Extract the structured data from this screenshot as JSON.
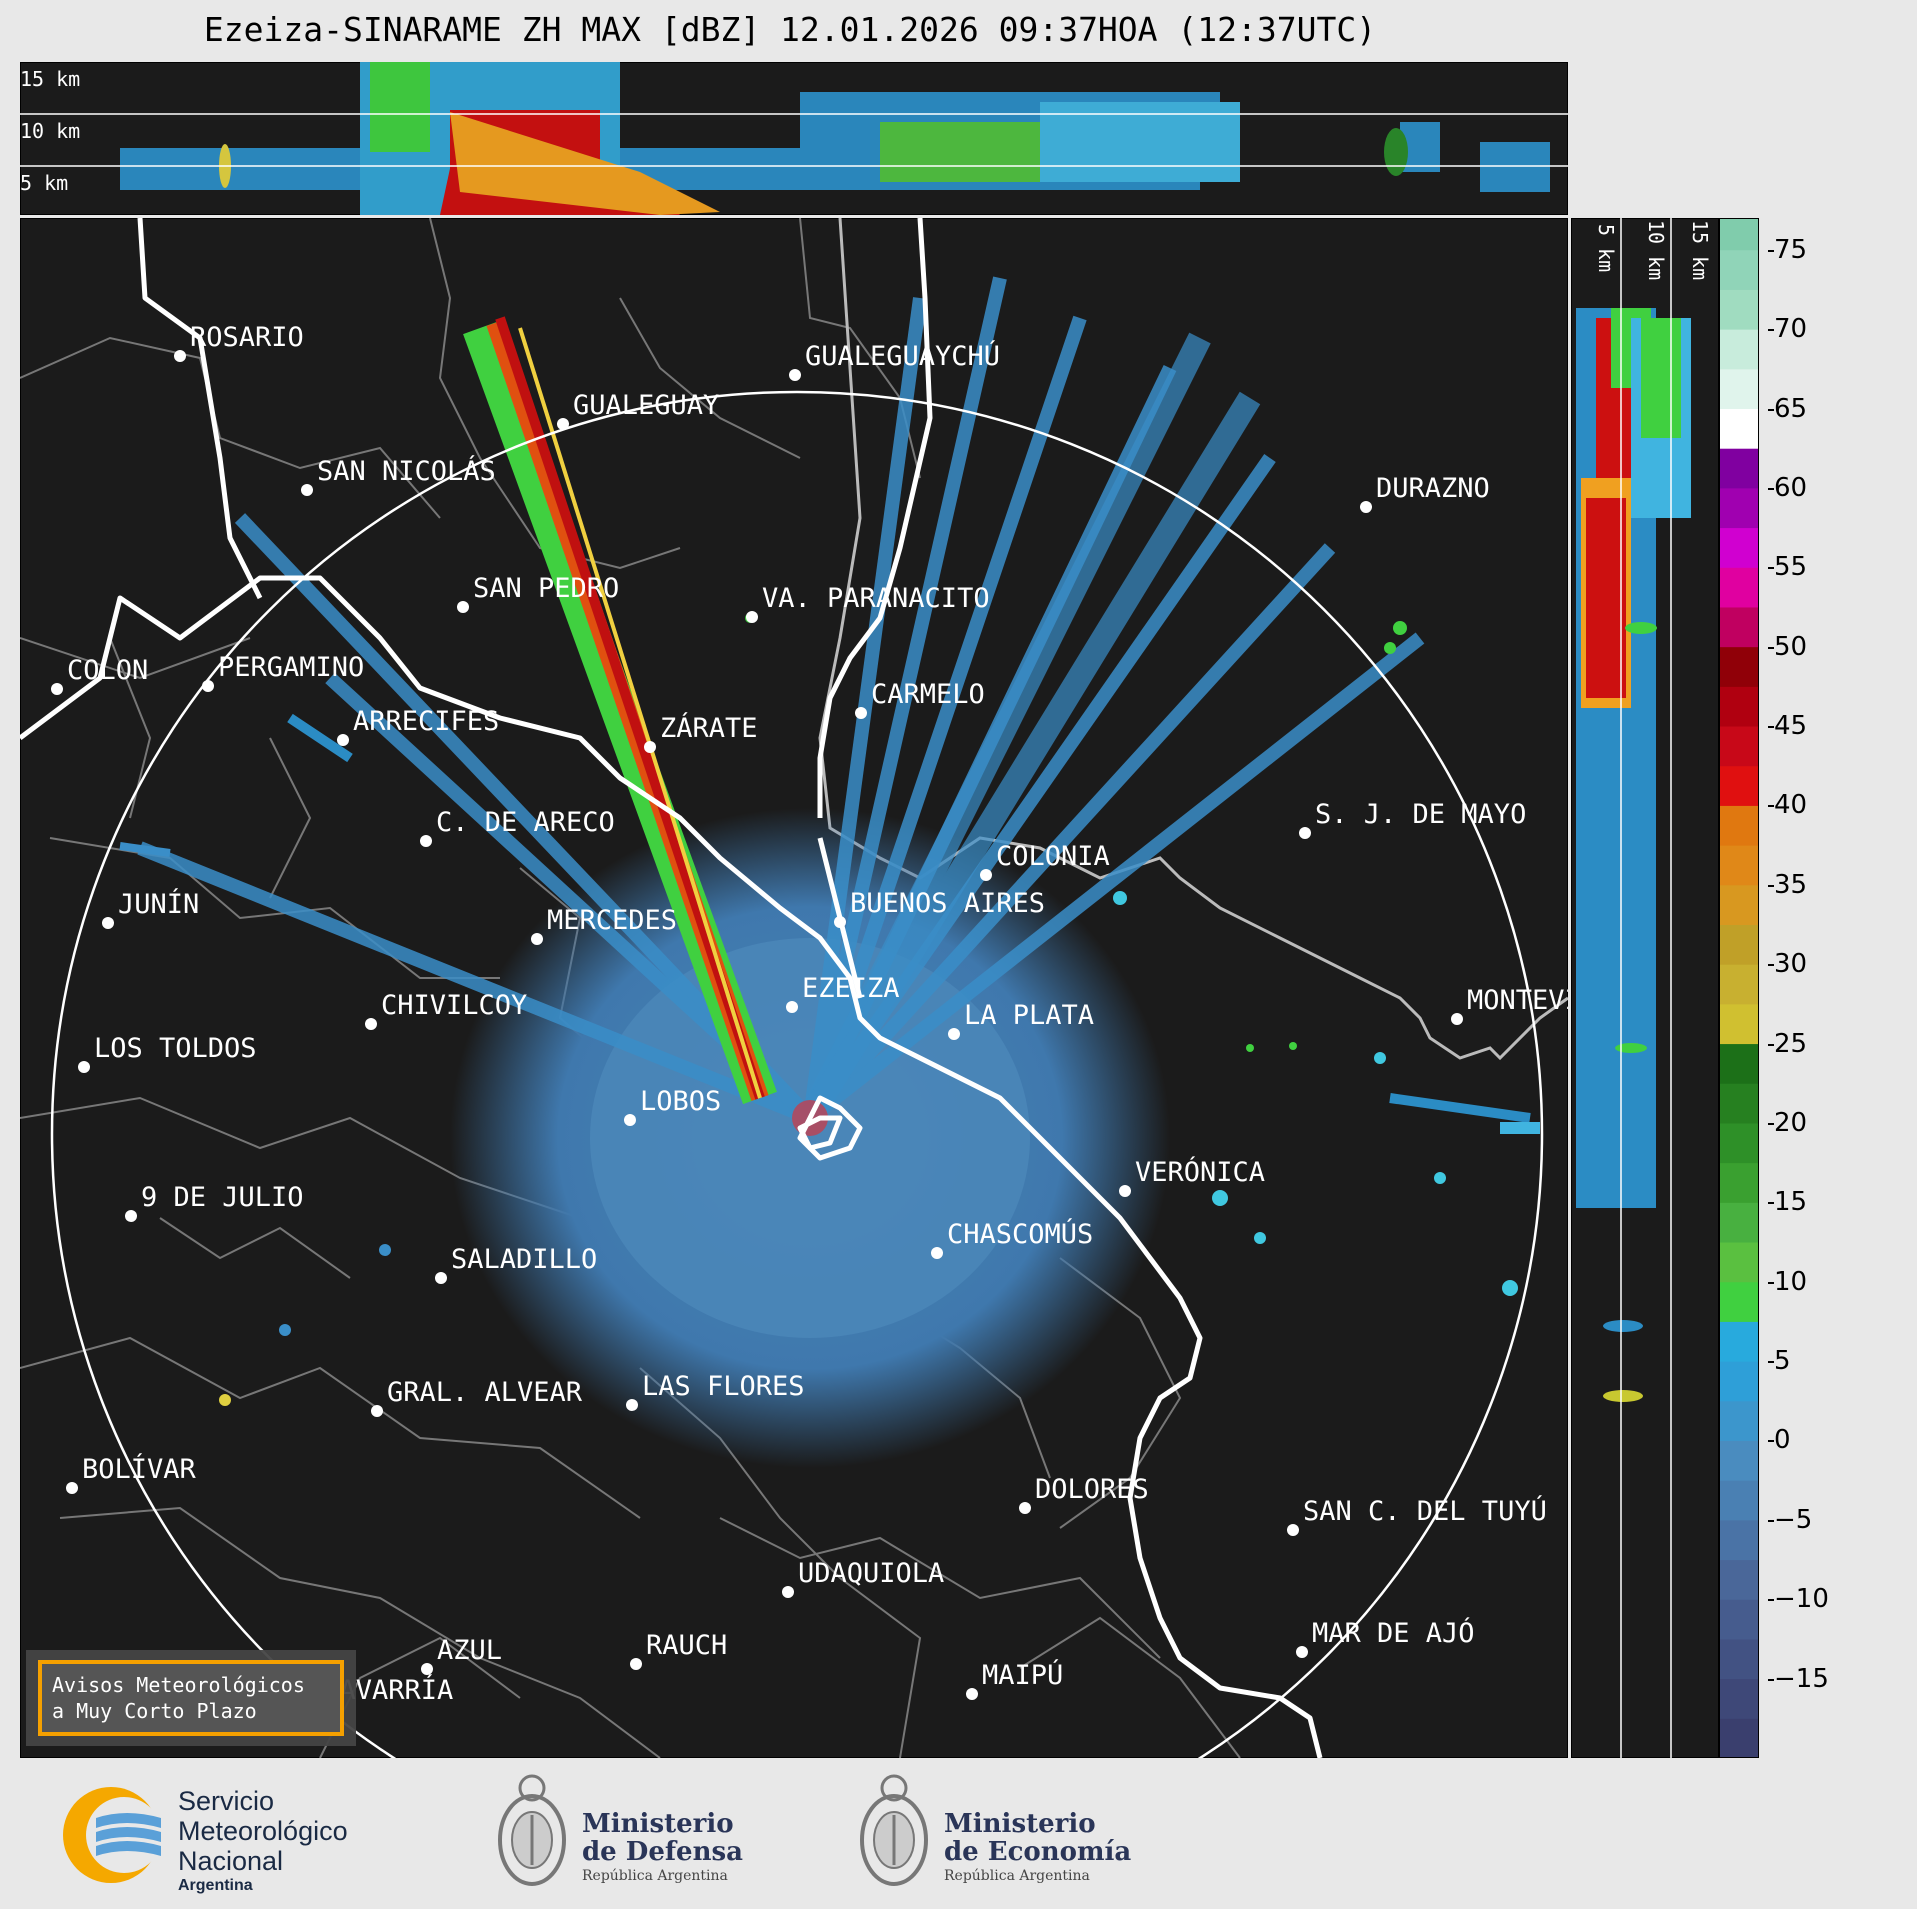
{
  "title": "Ezeiza-SINARAME ZH MAX [dBZ] 12.01.2026 09:37HOA (12:37UTC)",
  "top_panel": {
    "heights": [
      "15 km",
      "10 km",
      "5 km"
    ]
  },
  "right_panel": {
    "heights": [
      "5 km",
      "10 km",
      "15 km"
    ]
  },
  "colorbar": {
    "ticks": [
      "75",
      "70",
      "65",
      "60",
      "55",
      "50",
      "45",
      "40",
      "35",
      "30",
      "25",
      "20",
      "15",
      "10",
      "5",
      "0",
      "−5",
      "−10",
      "−15"
    ],
    "min": -20,
    "max": 77
  },
  "cities": [
    {
      "name": "ROSARIO",
      "lon": 180,
      "lat": 356
    },
    {
      "name": "GUALEGUAYCHÚ",
      "lon": 795,
      "lat": 375
    },
    {
      "name": "GUALEGUAY",
      "lon": 563,
      "lat": 424
    },
    {
      "name": "SAN NICOLÁS",
      "lon": 307,
      "lat": 490
    },
    {
      "name": "DURAZNO",
      "lon": 1366,
      "lat": 507
    },
    {
      "name": "SAN PEDRO",
      "lon": 463,
      "lat": 607
    },
    {
      "name": "VA. PARANACITO",
      "lon": 752,
      "lat": 617
    },
    {
      "name": "COLON",
      "lon": 57,
      "lat": 689
    },
    {
      "name": "PERGAMINO",
      "lon": 208,
      "lat": 686
    },
    {
      "name": "CARMELO",
      "lon": 861,
      "lat": 713
    },
    {
      "name": "ARRECIFES",
      "lon": 343,
      "lat": 740
    },
    {
      "name": "ZÁRATE",
      "lon": 650,
      "lat": 747
    },
    {
      "name": "C. DE ARECO",
      "lon": 426,
      "lat": 841
    },
    {
      "name": "S. J. DE MAYO",
      "lon": 1305,
      "lat": 833
    },
    {
      "name": "COLONIA",
      "lon": 986,
      "lat": 875
    },
    {
      "name": "BUENOS AIRES",
      "lon": 840,
      "lat": 922
    },
    {
      "name": "JUNÍN",
      "lon": 108,
      "lat": 923
    },
    {
      "name": "MERCEDES",
      "lon": 537,
      "lat": 939
    },
    {
      "name": "EZEIZA",
      "lon": 792,
      "lat": 1007
    },
    {
      "name": "CHIVILCOY",
      "lon": 371,
      "lat": 1024
    },
    {
      "name": "LA PLATA",
      "lon": 954,
      "lat": 1034
    },
    {
      "name": "MONTEVIDEO",
      "lon": 1457,
      "lat": 1019
    },
    {
      "name": "LOS TOLDOS",
      "lon": 84,
      "lat": 1067
    },
    {
      "name": "LOBOS",
      "lon": 630,
      "lat": 1120
    },
    {
      "name": "VERÓNICA",
      "lon": 1125,
      "lat": 1191
    },
    {
      "name": "9 DE JULIO",
      "lon": 131,
      "lat": 1216
    },
    {
      "name": "CHASCOMÚS",
      "lon": 937,
      "lat": 1253
    },
    {
      "name": "SALADILLO",
      "lon": 441,
      "lat": 1278
    },
    {
      "name": "GRAL. ALVEAR",
      "lon": 377,
      "lat": 1411
    },
    {
      "name": "LAS FLORES",
      "lon": 632,
      "lat": 1405
    },
    {
      "name": "BOLÍVAR",
      "lon": 72,
      "lat": 1488
    },
    {
      "name": "DOLORES",
      "lon": 1025,
      "lat": 1508
    },
    {
      "name": "SAN C. DEL TUYÚ",
      "lon": 1293,
      "lat": 1530
    },
    {
      "name": "UDAQUIOLA",
      "lon": 788,
      "lat": 1592
    },
    {
      "name": "MAR DE AJÓ",
      "lon": 1302,
      "lat": 1652
    },
    {
      "name": "AZUL",
      "lon": 427,
      "lat": 1669
    },
    {
      "name": "RAUCH",
      "lon": 636,
      "lat": 1664
    },
    {
      "name": "MAIPÚ",
      "lon": 972,
      "lat": 1694
    },
    {
      "name": "OLAVARRÍA",
      "lon": 297,
      "lat": 1709
    }
  ],
  "aviso": {
    "line1": "Avisos Meteorológicos",
    "line2": "a Muy Corto Plazo"
  },
  "footer": {
    "smn_line1": "Servicio",
    "smn_line2": "Meteorológico",
    "smn_line3": "Nacional",
    "smn_sub": "Argentina",
    "defensa_line1": "Ministerio",
    "defensa_line2": "de Defensa",
    "defensa_sub": "República Argentina",
    "economia_line1": "Ministerio",
    "economia_line2": "de Economía",
    "economia_sub": "República Argentina"
  }
}
